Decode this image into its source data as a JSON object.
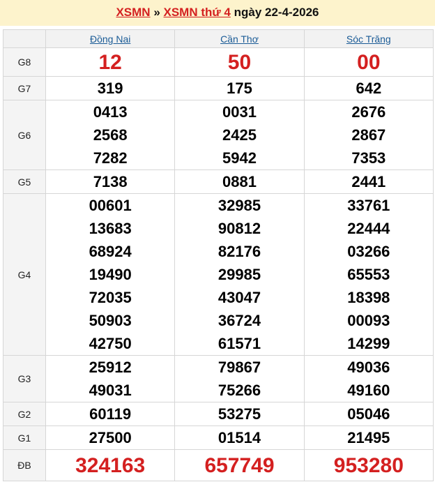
{
  "header": {
    "link1": "XSMN",
    "sep": " » ",
    "link2": "XSMN thứ 4",
    "suffix": " ngày 22-4-2026"
  },
  "provinces": [
    "Đồng Nai",
    "Cần Thơ",
    "Sóc Trăng"
  ],
  "prizes": [
    {
      "label": "G8",
      "style": "big",
      "values": [
        [
          "12"
        ],
        [
          "50"
        ],
        [
          "00"
        ]
      ]
    },
    {
      "label": "G7",
      "style": "num",
      "values": [
        [
          "319"
        ],
        [
          "175"
        ],
        [
          "642"
        ]
      ]
    },
    {
      "label": "G6",
      "style": "num",
      "values": [
        [
          "0413",
          "2568",
          "7282"
        ],
        [
          "0031",
          "2425",
          "5942"
        ],
        [
          "2676",
          "2867",
          "7353"
        ]
      ]
    },
    {
      "label": "G5",
      "style": "num",
      "values": [
        [
          "7138"
        ],
        [
          "0881"
        ],
        [
          "2441"
        ]
      ]
    },
    {
      "label": "G4",
      "style": "num",
      "values": [
        [
          "00601",
          "13683",
          "68924",
          "19490",
          "72035",
          "50903",
          "42750"
        ],
        [
          "32985",
          "90812",
          "82176",
          "29985",
          "43047",
          "36724",
          "61571"
        ],
        [
          "33761",
          "22444",
          "03266",
          "65553",
          "18398",
          "00093",
          "14299"
        ]
      ]
    },
    {
      "label": "G3",
      "style": "num",
      "values": [
        [
          "25912",
          "49031"
        ],
        [
          "79867",
          "75266"
        ],
        [
          "49036",
          "49160"
        ]
      ]
    },
    {
      "label": "G2",
      "style": "num",
      "values": [
        [
          "60119"
        ],
        [
          "53275"
        ],
        [
          "05046"
        ]
      ]
    },
    {
      "label": "G1",
      "style": "num",
      "values": [
        [
          "27500"
        ],
        [
          "01514"
        ],
        [
          "21495"
        ]
      ]
    },
    {
      "label": "ĐB",
      "style": "db",
      "values": [
        [
          "324163"
        ],
        [
          "657749"
        ],
        [
          "953280"
        ]
      ]
    }
  ],
  "colors": {
    "accent": "#d42020",
    "link": "#1a5b96",
    "header_bg": "#fdf3cc"
  }
}
